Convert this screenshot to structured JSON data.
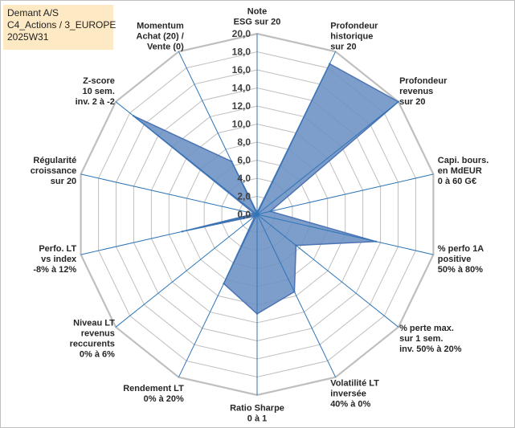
{
  "header": {
    "name": "Demant A/S",
    "portfolio": "C4_Actions / 3_EUROPE",
    "week": "2025W31"
  },
  "chart_data": {
    "type": "radar",
    "title": "",
    "rmax": 20,
    "tick_step": 2,
    "tick_labels": [
      "0,0",
      "2,0",
      "4,0",
      "6,0",
      "8,0",
      "10,0",
      "12,0",
      "14,0",
      "16,0",
      "18,0",
      "20,0"
    ],
    "grid": true,
    "colors": {
      "fill": "#6b8fc4",
      "stroke": "#4d74b4",
      "spoke": "#2e75b6",
      "grid": "#bfbfbf"
    },
    "categories": [
      [
        "Note",
        "ESG sur 20"
      ],
      [
        "Profondeur",
        "historique",
        "sur 20"
      ],
      [
        "Profondeur",
        "revenus",
        "sur 20"
      ],
      [
        "Capi. bours.",
        "en MdEUR",
        "0 à 60 G€"
      ],
      [
        "% perfo 1A",
        "positive",
        "50% à 80%"
      ],
      [
        "% perte max.",
        "sur 1 sem.",
        "inv. 50% à 20%"
      ],
      [
        "Volatilité LT",
        "inversée",
        "40% à 0%"
      ],
      [
        "Ratio Sharpe",
        "0 à 1"
      ],
      [
        "Rendement LT",
        "0% à 20%"
      ],
      [
        "Niveau LT",
        "revenus",
        "reccurents",
        "0% à 6%"
      ],
      [
        "Perfo. LT",
        "vs index",
        "-8% à 12%"
      ],
      [
        "Régularité",
        "croissance",
        "sur 20"
      ],
      [
        "Z-score",
        "10 sem.",
        "inv. 2 à -2"
      ],
      [
        "Momentum",
        "Achat (20) /",
        "Vente (0)"
      ]
    ],
    "series": [
      {
        "values": [
          0.2,
          18.5,
          20.0,
          1.5,
          13.5,
          5.5,
          9.5,
          11.0,
          8.5,
          0.3,
          8.5,
          0.3,
          17.5,
          6.5
        ]
      }
    ]
  }
}
